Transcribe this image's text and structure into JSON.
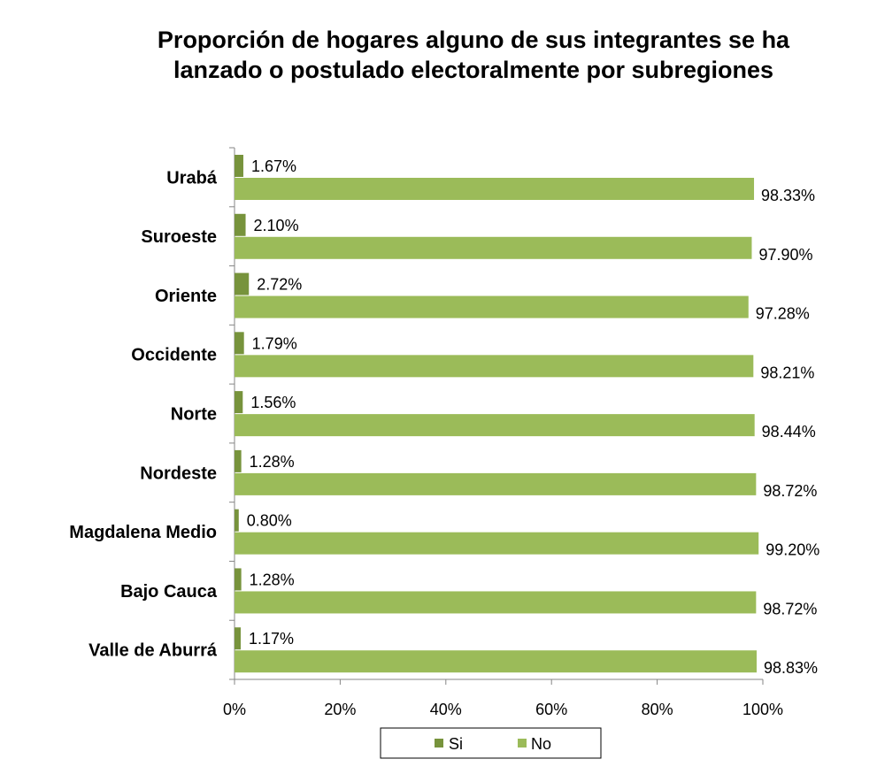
{
  "chart_data": {
    "type": "bar",
    "orientation": "horizontal",
    "title": "Proporción de hogares alguno de sus integrantes se ha\nlanzado o postulado electoralmente por subregiones",
    "categories": [
      "Urabá",
      "Suroeste",
      "Oriente",
      "Occidente",
      "Norte",
      "Nordeste",
      "Magdalena Medio",
      "Bajo Cauca",
      "Valle de Aburrá"
    ],
    "series": [
      {
        "name": "Si",
        "color": "#77933C",
        "values": [
          1.67,
          2.1,
          2.72,
          1.79,
          1.56,
          1.28,
          0.8,
          1.28,
          1.17
        ],
        "labels": [
          "1.67%",
          "2.10%",
          "2.72%",
          "1.79%",
          "1.56%",
          "1.28%",
          "0.80%",
          "1.28%",
          "1.17%"
        ]
      },
      {
        "name": "No",
        "color": "#9BBB59",
        "values": [
          98.33,
          97.9,
          97.28,
          98.21,
          98.44,
          98.72,
          99.2,
          98.72,
          98.83
        ],
        "labels": [
          "98.33%",
          "97.90%",
          "97.28%",
          "98.21%",
          "98.44%",
          "98.72%",
          "99.20%",
          "98.72%",
          "98.83%"
        ]
      }
    ],
    "xlim": [
      0,
      100
    ],
    "xticks": [
      "0%",
      "20%",
      "40%",
      "60%",
      "80%",
      "100%"
    ],
    "xticks_values": [
      0,
      20,
      40,
      60,
      80,
      100
    ],
    "grid": false,
    "legend": "bottom"
  }
}
